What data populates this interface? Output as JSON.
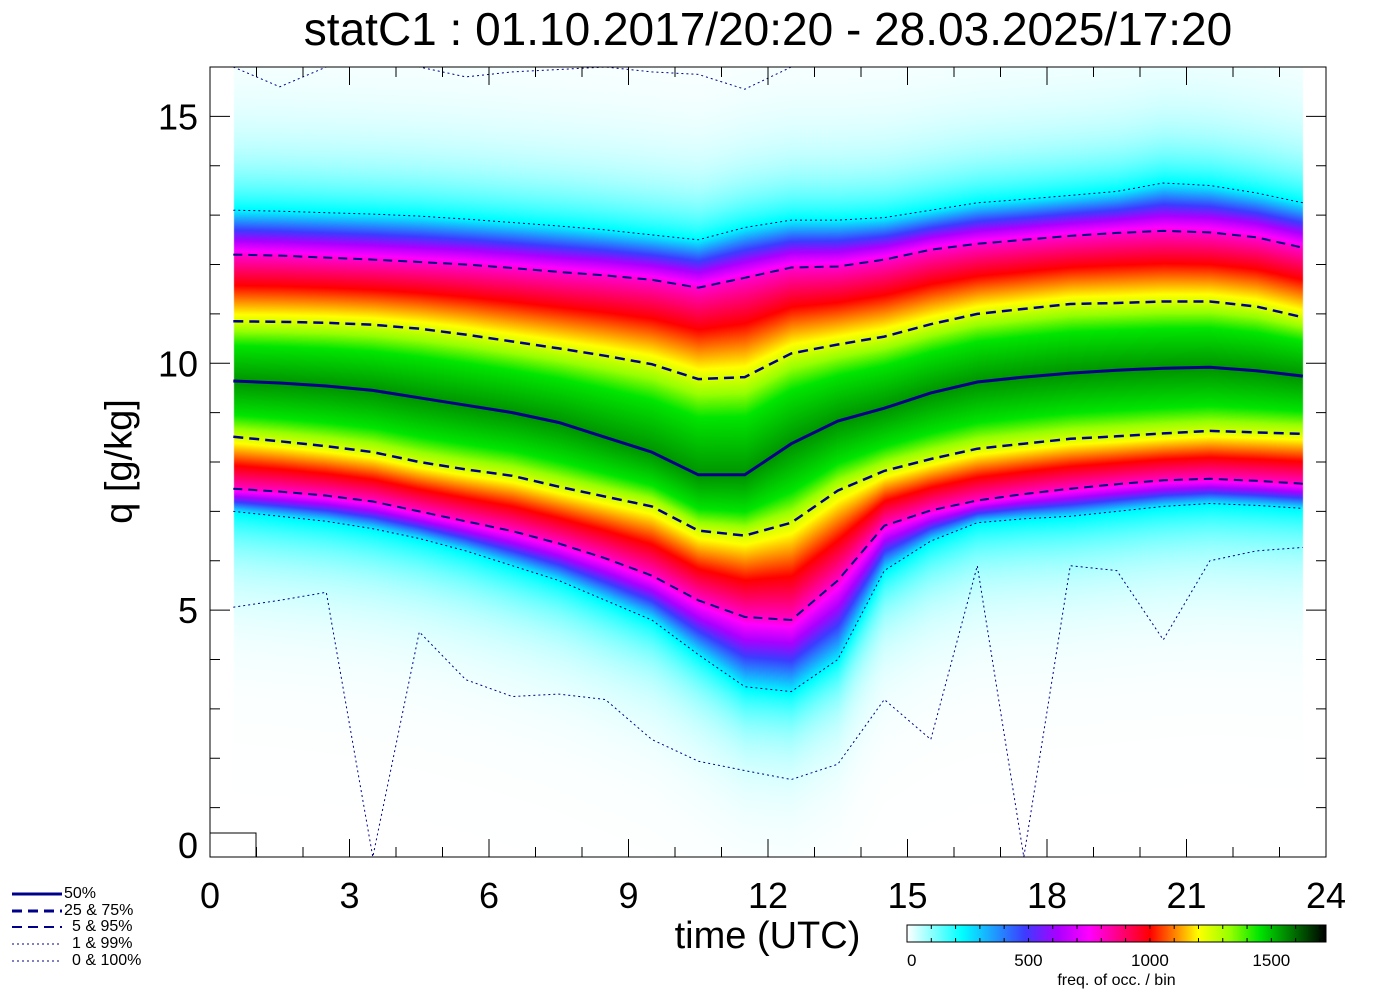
{
  "title": "statC1 : 01.10.2017/20:20 - 28.03.2025/17:20",
  "chart_data": {
    "type": "heatmap",
    "title": "statC1 : 01.10.2017/20:20 - 28.03.2025/17:20",
    "xlabel": "time (UTC)",
    "ylabel": "q [g/kg]",
    "xlim": [
      0,
      24
    ],
    "ylim": [
      0,
      16
    ],
    "xticks": [
      0,
      3,
      6,
      9,
      12,
      15,
      18,
      21,
      24
    ],
    "yticks": [
      0,
      5,
      10,
      15
    ],
    "x": [
      0.5,
      1.5,
      2.5,
      3.5,
      4.5,
      5.5,
      6.5,
      7.5,
      8.5,
      9.5,
      10.5,
      11.5,
      12.5,
      13.5,
      14.5,
      15.5,
      16.5,
      17.5,
      18.5,
      19.5,
      20.5,
      21.5,
      22.5,
      23.5
    ],
    "series": [
      {
        "name": "50%",
        "style": "solid",
        "values": [
          9.64,
          9.6,
          9.54,
          9.45,
          9.3,
          9.15,
          9.0,
          8.8,
          8.5,
          8.2,
          7.74,
          7.74,
          8.37,
          8.83,
          9.09,
          9.4,
          9.62,
          9.72,
          9.8,
          9.86,
          9.9,
          9.92,
          9.85,
          9.74
        ]
      },
      {
        "name": "25%",
        "style": "dashed",
        "values": [
          8.51,
          8.42,
          8.32,
          8.2,
          8.0,
          7.85,
          7.72,
          7.5,
          7.3,
          7.1,
          6.61,
          6.51,
          6.77,
          7.42,
          7.82,
          8.06,
          8.27,
          8.37,
          8.47,
          8.52,
          8.58,
          8.63,
          8.6,
          8.57
        ]
      },
      {
        "name": "75%",
        "style": "dashed",
        "values": [
          10.85,
          10.84,
          10.82,
          10.78,
          10.7,
          10.58,
          10.44,
          10.3,
          10.15,
          9.98,
          9.68,
          9.72,
          10.2,
          10.38,
          10.54,
          10.79,
          11.0,
          11.1,
          11.2,
          11.22,
          11.25,
          11.25,
          11.15,
          10.93
        ]
      },
      {
        "name": "5%",
        "style": "dashed-short",
        "values": [
          7.46,
          7.4,
          7.32,
          7.2,
          7.0,
          6.8,
          6.6,
          6.35,
          6.05,
          5.7,
          5.2,
          4.86,
          4.8,
          5.6,
          6.71,
          7.02,
          7.22,
          7.35,
          7.46,
          7.55,
          7.63,
          7.66,
          7.62,
          7.56
        ]
      },
      {
        "name": "95%",
        "style": "dashed-short",
        "values": [
          12.2,
          12.18,
          12.14,
          12.1,
          12.05,
          12.0,
          11.93,
          11.85,
          11.78,
          11.69,
          11.53,
          11.73,
          11.94,
          11.96,
          12.1,
          12.3,
          12.42,
          12.5,
          12.58,
          12.64,
          12.68,
          12.65,
          12.55,
          12.34
        ]
      },
      {
        "name": "1%",
        "style": "dotted",
        "values": [
          7.0,
          6.9,
          6.8,
          6.65,
          6.45,
          6.2,
          5.9,
          5.6,
          5.2,
          4.8,
          4.1,
          3.45,
          3.35,
          4.0,
          5.8,
          6.4,
          6.77,
          6.85,
          6.9,
          7.0,
          7.1,
          7.16,
          7.12,
          7.06
        ]
      },
      {
        "name": "99%",
        "style": "dotted",
        "values": [
          13.1,
          13.08,
          13.05,
          13.02,
          12.98,
          12.92,
          12.85,
          12.78,
          12.7,
          12.6,
          12.5,
          12.75,
          12.9,
          12.9,
          12.95,
          13.1,
          13.25,
          13.32,
          13.4,
          13.48,
          13.65,
          13.6,
          13.45,
          13.25
        ]
      },
      {
        "name": "0%",
        "style": "dotted",
        "values": [
          5.06,
          5.2,
          5.36,
          0.0,
          4.56,
          3.59,
          3.25,
          3.3,
          3.19,
          2.38,
          1.94,
          1.75,
          1.57,
          1.88,
          3.19,
          2.38,
          5.9,
          0.0,
          5.9,
          5.8,
          4.4,
          6.0,
          6.2,
          6.27
        ]
      },
      {
        "name": "100%",
        "style": "dotted",
        "values": [
          16.0,
          15.6,
          16.0,
          16.2,
          16.0,
          15.8,
          15.9,
          15.95,
          16.0,
          15.9,
          15.85,
          15.55,
          16.0,
          16.2,
          16.2,
          16.2,
          16.2,
          16.2,
          16.2,
          16.2,
          16.2,
          16.2,
          16.2,
          16.2
        ]
      }
    ],
    "line_color": "#00008b",
    "legend": {
      "placement": "bottom-left",
      "entries": [
        "50%",
        "25 &  75%",
        "5 &  95%",
        "1 &  99%",
        "0 & 100%"
      ]
    },
    "colorbar": {
      "label": "freq. of occ. / bin",
      "range": [
        0,
        1725
      ],
      "ticks": [
        0,
        500,
        1000,
        1500
      ],
      "colors": [
        "#ffffff",
        "#00ffff",
        "#3c3cff",
        "#ff00ff",
        "#ff0000",
        "#ffff00",
        "#00e600",
        "#000000"
      ]
    }
  }
}
